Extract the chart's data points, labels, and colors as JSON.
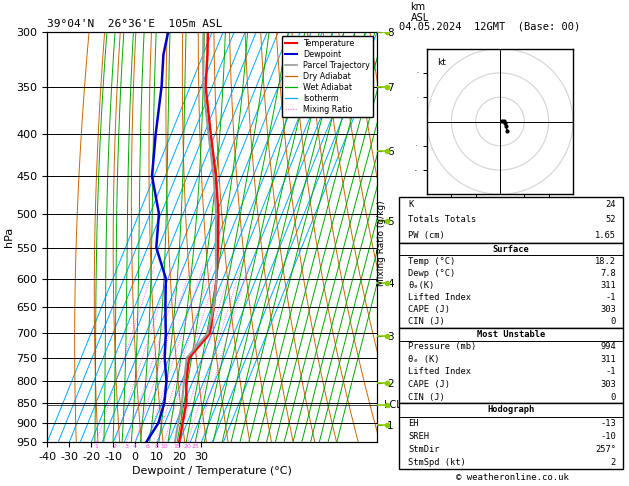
{
  "title_left": "39°04'N  26°36'E  105m ASL",
  "title_right": "04.05.2024  12GMT  (Base: 00)",
  "xlabel": "Dewpoint / Temperature (°C)",
  "ylabel_left": "hPa",
  "pressure_levels": [
    300,
    350,
    400,
    450,
    500,
    550,
    600,
    650,
    700,
    750,
    800,
    850,
    900,
    950
  ],
  "pressure_min": 300,
  "pressure_max": 950,
  "temp_min": -40,
  "temp_max": 35,
  "mixing_ratio_values": [
    1,
    2,
    3,
    4,
    6,
    8,
    10,
    15,
    20,
    25
  ],
  "km_levels": [
    1,
    2,
    3,
    4,
    5,
    6,
    7,
    8
  ],
  "km_pressures": [
    905,
    805,
    705,
    608,
    510,
    420,
    350,
    300
  ],
  "lcl_pressure": 855,
  "temperature_profile": {
    "pressure": [
      300,
      320,
      350,
      400,
      450,
      500,
      550,
      600,
      650,
      700,
      750,
      800,
      850,
      900,
      950
    ],
    "temp": [
      -42,
      -38,
      -33,
      -22,
      -12,
      -4,
      2,
      7,
      11,
      14,
      9,
      12,
      16,
      18,
      20
    ]
  },
  "dewpoint_profile": {
    "pressure": [
      300,
      320,
      350,
      400,
      450,
      500,
      550,
      600,
      650,
      700,
      750,
      800,
      850,
      900,
      950
    ],
    "temp": [
      -60,
      -58,
      -53,
      -47,
      -41,
      -31,
      -26,
      -16,
      -11,
      -6,
      -2,
      3,
      6,
      7,
      5
    ]
  },
  "parcel_profile": {
    "pressure": [
      300,
      320,
      350,
      400,
      450,
      500,
      550,
      600,
      650,
      700,
      750,
      800,
      850,
      900,
      950
    ],
    "temp": [
      -44,
      -40,
      -34,
      -23,
      -13,
      -5,
      1,
      7,
      11,
      13,
      8,
      11,
      14,
      16,
      18
    ]
  },
  "temp_color": "#ff0000",
  "dewpoint_color": "#0000cc",
  "parcel_color": "#999999",
  "dry_adiabat_color": "#cc6600",
  "wet_adiabat_color": "#00aa00",
  "isotherm_color": "#00aaff",
  "mixing_ratio_color": "#ff44ff",
  "indices": {
    "K": 24,
    "Totals_Totals": 52,
    "PW_cm": 1.65,
    "Surface_Temp": 18.2,
    "Surface_Dewp": 7.8,
    "Surface_ThetaE": 311,
    "Surface_LI": -1,
    "Surface_CAPE": 303,
    "Surface_CIN": 0,
    "MU_Pressure": 994,
    "MU_ThetaE": 311,
    "MU_LI": -1,
    "MU_CAPE": 303,
    "MU_CIN": 0,
    "Hodo_EH": -13,
    "Hodo_SREH": -10,
    "Hodo_StmDir": 257,
    "Hodo_StmSpd": 2
  },
  "hodograph_points": [
    [
      0.5,
      0.2
    ],
    [
      0.8,
      0.1
    ],
    [
      1.0,
      -0.3
    ],
    [
      1.2,
      -1.0
    ],
    [
      1.5,
      -2.0
    ]
  ],
  "copyright": "© weatheronline.co.uk",
  "legend_labels": [
    "Temperature",
    "Dewpoint",
    "Parcel Trajectory",
    "Dry Adiabat",
    "Wet Adiabat",
    "Isotherm",
    "Mixing Ratio"
  ]
}
